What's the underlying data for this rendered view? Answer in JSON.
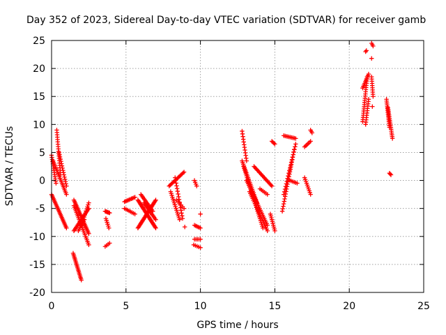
{
  "chart_data": {
    "type": "scatter",
    "title": "Day 352 of 2023, Sidereal Day-to-day VTEC variation (SDTVAR) for receiver gamb",
    "xlabel": "GPS time / hours",
    "ylabel": "SDTVAR / TECUs",
    "xlim": [
      0,
      25
    ],
    "ylim": [
      -20,
      25
    ],
    "xticks": [
      0,
      5,
      10,
      15,
      20,
      25
    ],
    "yticks": [
      -20,
      -15,
      -10,
      -5,
      0,
      5,
      10,
      15,
      20,
      25
    ],
    "xtick_labels": [
      "0",
      "5",
      "10",
      "15",
      "20",
      "25"
    ],
    "ytick_labels": [
      "-20",
      "-15",
      "-10",
      "-5",
      "0",
      "5",
      "10",
      "15",
      "20",
      "25"
    ],
    "grid": true,
    "marker": "+",
    "color": "#ff0000",
    "series": [
      {
        "name": "SDTVAR",
        "segments": [
          {
            "from": [
              0.0,
              4.5
            ],
            "to": [
              0.3,
              -0.5
            ],
            "n": 14
          },
          {
            "from": [
              0.1,
              3.5
            ],
            "to": [
              1.0,
              -2.5
            ],
            "n": 22
          },
          {
            "from": [
              0.35,
              9.0
            ],
            "to": [
              0.6,
              1.0
            ],
            "n": 20
          },
          {
            "from": [
              0.5,
              5.0
            ],
            "to": [
              1.0,
              -1.0
            ],
            "n": 16
          },
          {
            "from": [
              0.0,
              -2.5
            ],
            "to": [
              1.0,
              -8.5
            ],
            "n": 26
          },
          {
            "from": [
              1.5,
              -3.5
            ],
            "to": [
              2.5,
              -9.5
            ],
            "n": 26
          },
          {
            "from": [
              1.5,
              -9.0
            ],
            "to": [
              2.5,
              -5.0
            ],
            "n": 20
          },
          {
            "from": [
              1.5,
              -4.5
            ],
            "to": [
              2.5,
              -11.5
            ],
            "n": 24
          },
          {
            "from": [
              1.8,
              -9.0
            ],
            "to": [
              2.2,
              -7.0
            ],
            "n": 8
          },
          {
            "from": [
              1.45,
              -13.0
            ],
            "to": [
              2.0,
              -17.8
            ],
            "n": 20
          },
          {
            "from": [
              2.0,
              -8.0
            ],
            "to": [
              2.5,
              -4.0
            ],
            "n": 12
          },
          {
            "from": [
              3.6,
              -5.5
            ],
            "to": [
              3.9,
              -5.8
            ],
            "n": 6
          },
          {
            "from": [
              3.65,
              -6.8
            ],
            "to": [
              3.85,
              -8.5
            ],
            "n": 6
          },
          {
            "from": [
              3.6,
              -11.8
            ],
            "to": [
              3.9,
              -11.2
            ],
            "n": 4
          },
          {
            "from": [
              4.9,
              -3.8
            ],
            "to": [
              5.6,
              -3.0
            ],
            "n": 10
          },
          {
            "from": [
              4.9,
              -5.0
            ],
            "to": [
              5.6,
              -6.0
            ],
            "n": 8
          },
          {
            "from": [
              5.8,
              -3.5
            ],
            "to": [
              7.0,
              -8.5
            ],
            "n": 30
          },
          {
            "from": [
              5.8,
              -8.5
            ],
            "to": [
              7.0,
              -3.5
            ],
            "n": 30
          },
          {
            "from": [
              6.0,
              -2.5
            ],
            "to": [
              6.8,
              -5.5
            ],
            "n": 14
          },
          {
            "from": [
              6.2,
              -4.0
            ],
            "to": [
              7.0,
              -7.0
            ],
            "n": 14
          },
          {
            "from": [
              7.9,
              -1.0
            ],
            "to": [
              8.9,
              1.5
            ],
            "n": 16
          },
          {
            "from": [
              8.0,
              -2.0
            ],
            "to": [
              8.6,
              -7.0
            ],
            "n": 16
          },
          {
            "from": [
              8.3,
              0.5
            ],
            "to": [
              8.8,
              -6.8
            ],
            "n": 16
          },
          {
            "from": [
              8.4,
              -3.5
            ],
            "to": [
              8.9,
              -5.0
            ],
            "n": 6
          },
          {
            "from": [
              8.95,
              -8.3
            ],
            "to": [
              8.95,
              -8.3
            ],
            "n": 1
          },
          {
            "from": [
              9.6,
              0.0
            ],
            "to": [
              9.75,
              -1.0
            ],
            "n": 4
          },
          {
            "from": [
              9.6,
              -8.0
            ],
            "to": [
              10.0,
              -8.5
            ],
            "n": 6
          },
          {
            "from": [
              9.6,
              -10.5
            ],
            "to": [
              10.0,
              -10.5
            ],
            "n": 5
          },
          {
            "from": [
              9.55,
              -11.5
            ],
            "to": [
              10.0,
              -12.0
            ],
            "n": 5
          },
          {
            "from": [
              10.0,
              -6.0
            ],
            "to": [
              10.0,
              -6.0
            ],
            "n": 1
          },
          {
            "from": [
              12.8,
              8.8
            ],
            "to": [
              13.1,
              3.5
            ],
            "n": 12
          },
          {
            "from": [
              12.8,
              3.5
            ],
            "to": [
              13.8,
              -4.0
            ],
            "n": 26
          },
          {
            "from": [
              12.9,
              2.5
            ],
            "to": [
              14.2,
              -8.5
            ],
            "n": 34
          },
          {
            "from": [
              13.1,
              0.0
            ],
            "to": [
              14.5,
              -8.0
            ],
            "n": 28
          },
          {
            "from": [
              13.3,
              -2.0
            ],
            "to": [
              14.5,
              -9.0
            ],
            "n": 24
          },
          {
            "from": [
              13.6,
              2.5
            ],
            "to": [
              14.8,
              -1.0
            ],
            "n": 20
          },
          {
            "from": [
              14.0,
              -1.5
            ],
            "to": [
              14.5,
              -2.5
            ],
            "n": 6
          },
          {
            "from": [
              14.7,
              -6.0
            ],
            "to": [
              15.0,
              -9.0
            ],
            "n": 10
          },
          {
            "from": [
              14.8,
              7.0
            ],
            "to": [
              15.0,
              6.5
            ],
            "n": 4
          },
          {
            "from": [
              15.5,
              -5.5
            ],
            "to": [
              16.3,
              5.5
            ],
            "n": 26
          },
          {
            "from": [
              15.6,
              -2.5
            ],
            "to": [
              16.4,
              6.5
            ],
            "n": 20
          },
          {
            "from": [
              15.6,
              8.0
            ],
            "to": [
              16.4,
              7.5
            ],
            "n": 10
          },
          {
            "from": [
              16.0,
              0.0
            ],
            "to": [
              16.5,
              -0.5
            ],
            "n": 6
          },
          {
            "from": [
              17.0,
              0.5
            ],
            "to": [
              17.4,
              -2.5
            ],
            "n": 10
          },
          {
            "from": [
              17.0,
              6.0
            ],
            "to": [
              17.4,
              7.0
            ],
            "n": 6
          },
          {
            "from": [
              17.4,
              9.0
            ],
            "to": [
              17.5,
              8.5
            ],
            "n": 3
          },
          {
            "from": [
              20.9,
              10.5
            ],
            "to": [
              21.2,
              18.5
            ],
            "n": 22
          },
          {
            "from": [
              20.9,
              16.5
            ],
            "to": [
              21.3,
              19.0
            ],
            "n": 10
          },
          {
            "from": [
              21.1,
              10.0
            ],
            "to": [
              21.3,
              14.5
            ],
            "n": 12
          },
          {
            "from": [
              21.1,
              23.0
            ],
            "to": [
              21.15,
              23.2
            ],
            "n": 2
          },
          {
            "from": [
              21.5,
              24.5
            ],
            "to": [
              21.6,
              24.0
            ],
            "n": 3
          },
          {
            "from": [
              21.5,
              21.8
            ],
            "to": [
              21.5,
              21.8
            ],
            "n": 1
          },
          {
            "from": [
              21.5,
              18.5
            ],
            "to": [
              21.6,
              15.0
            ],
            "n": 10
          },
          {
            "from": [
              21.55,
              13.2
            ],
            "to": [
              21.55,
              13.2
            ],
            "n": 1
          },
          {
            "from": [
              22.5,
              14.5
            ],
            "to": [
              22.7,
              9.5
            ],
            "n": 16
          },
          {
            "from": [
              22.6,
              13.0
            ],
            "to": [
              22.9,
              7.5
            ],
            "n": 18
          },
          {
            "from": [
              22.7,
              1.3
            ],
            "to": [
              22.8,
              1.0
            ],
            "n": 3
          }
        ]
      }
    ]
  }
}
